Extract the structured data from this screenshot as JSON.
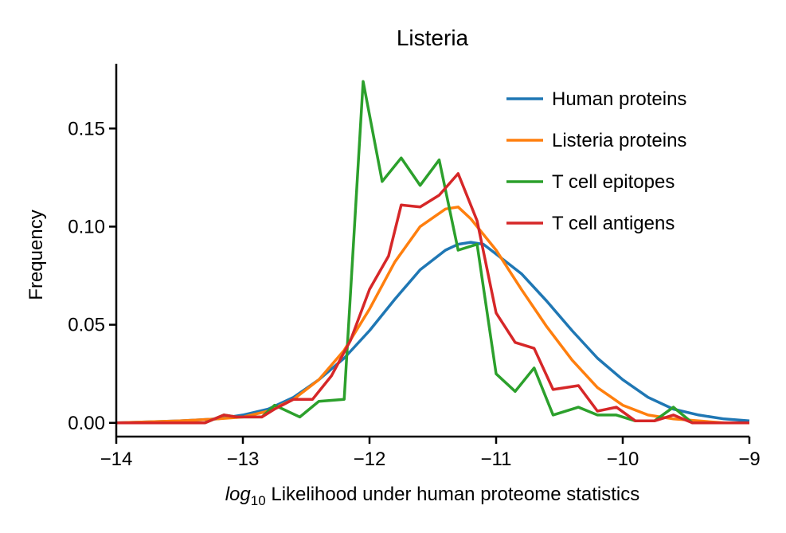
{
  "chart_data": {
    "type": "line",
    "title": "Listeria",
    "xlabel_sym": "log",
    "xlabel_sub": "10",
    "xlabel_rest": " Likelihood under human proteome statistics",
    "ylabel": "Frequency",
    "xlim": [
      -14,
      -9
    ],
    "ylim": [
      -0.007,
      0.183
    ],
    "xticks": [
      -14,
      -13,
      -12,
      -11,
      -10,
      -9
    ],
    "xtick_labels": [
      "−14",
      "−13",
      "−12",
      "−11",
      "−10",
      "−9"
    ],
    "yticks": [
      0.0,
      0.05,
      0.1,
      0.15
    ],
    "ytick_labels": [
      "0.00",
      "0.05",
      "0.10",
      "0.15"
    ],
    "legend_position": "top-right",
    "series": [
      {
        "name": "Human proteins",
        "color": "#1f77b4",
        "x": [
          -14.0,
          -13.5,
          -13.2,
          -13.0,
          -12.8,
          -12.6,
          -12.4,
          -12.2,
          -12.0,
          -11.8,
          -11.6,
          -11.4,
          -11.3,
          -11.2,
          -11.1,
          -11.0,
          -10.8,
          -10.6,
          -10.4,
          -10.2,
          -10.0,
          -9.8,
          -9.6,
          -9.4,
          -9.2,
          -9.0
        ],
        "y": [
          0.0,
          0.001,
          0.002,
          0.004,
          0.007,
          0.013,
          0.022,
          0.033,
          0.047,
          0.063,
          0.078,
          0.088,
          0.091,
          0.092,
          0.091,
          0.086,
          0.076,
          0.062,
          0.047,
          0.033,
          0.022,
          0.013,
          0.007,
          0.004,
          0.002,
          0.001
        ]
      },
      {
        "name": "Listeria proteins",
        "color": "#ff7f0e",
        "x": [
          -14.0,
          -13.5,
          -13.2,
          -13.0,
          -12.8,
          -12.6,
          -12.4,
          -12.2,
          -12.0,
          -11.8,
          -11.6,
          -11.4,
          -11.3,
          -11.2,
          -11.0,
          -10.8,
          -10.6,
          -10.4,
          -10.2,
          -10.0,
          -9.8,
          -9.6,
          -9.4,
          -9.2,
          -9.0
        ],
        "y": [
          0.0,
          0.001,
          0.002,
          0.003,
          0.006,
          0.012,
          0.022,
          0.037,
          0.058,
          0.082,
          0.1,
          0.109,
          0.11,
          0.104,
          0.088,
          0.068,
          0.049,
          0.032,
          0.018,
          0.009,
          0.004,
          0.002,
          0.001,
          0.0,
          0.0
        ]
      },
      {
        "name": "T cell epitopes",
        "color": "#2ca02c",
        "x": [
          -14.0,
          -13.3,
          -13.15,
          -13.05,
          -12.85,
          -12.75,
          -12.55,
          -12.4,
          -12.2,
          -12.05,
          -11.9,
          -11.75,
          -11.6,
          -11.45,
          -11.3,
          -11.15,
          -11.0,
          -10.85,
          -10.7,
          -10.55,
          -10.35,
          -10.2,
          -10.05,
          -9.9,
          -9.75,
          -9.6,
          -9.45,
          -9.3,
          -9.0
        ],
        "y": [
          0.0,
          0.0,
          0.004,
          0.003,
          0.003,
          0.009,
          0.003,
          0.011,
          0.012,
          0.174,
          0.123,
          0.135,
          0.121,
          0.134,
          0.088,
          0.091,
          0.025,
          0.016,
          0.028,
          0.004,
          0.008,
          0.004,
          0.004,
          0.001,
          0.001,
          0.008,
          0.0,
          0.0,
          0.0
        ]
      },
      {
        "name": "T cell antigens",
        "color": "#d62728",
        "x": [
          -14.0,
          -13.3,
          -13.15,
          -13.05,
          -12.85,
          -12.75,
          -12.6,
          -12.45,
          -12.3,
          -12.15,
          -12.0,
          -11.85,
          -11.75,
          -11.6,
          -11.45,
          -11.3,
          -11.15,
          -11.0,
          -10.85,
          -10.7,
          -10.55,
          -10.35,
          -10.2,
          -10.05,
          -9.9,
          -9.75,
          -9.6,
          -9.45,
          -9.3,
          -9.0
        ],
        "y": [
          0.0,
          0.0,
          0.004,
          0.003,
          0.003,
          0.007,
          0.012,
          0.012,
          0.024,
          0.042,
          0.068,
          0.085,
          0.111,
          0.11,
          0.116,
          0.127,
          0.103,
          0.056,
          0.041,
          0.038,
          0.017,
          0.019,
          0.006,
          0.008,
          0.001,
          0.001,
          0.004,
          0.0,
          0.0,
          0.0
        ]
      }
    ]
  }
}
